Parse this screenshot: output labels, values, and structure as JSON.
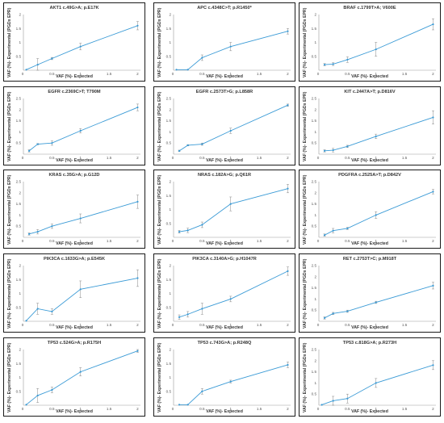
{
  "chart_data": [
    {
      "type": "line",
      "title": "AKT1 c.49G>A; p.E17K",
      "xlabel": "VAF (%)- Expected",
      "ylabel": "VAF (%)- Experimental (PGDx EPR)",
      "x": [
        0.05,
        0.25,
        0.5,
        1,
        2
      ],
      "y": [
        0.02,
        0.2,
        0.42,
        0.85,
        1.6
      ],
      "err": [
        0.0,
        0.22,
        0.04,
        0.12,
        0.15
      ],
      "xticks": [
        0.5,
        1,
        1.5,
        2
      ],
      "yticks": [
        0.5,
        1,
        1.5,
        2
      ],
      "xlim": [
        0,
        2.05
      ],
      "ylim": [
        0,
        2.0
      ]
    },
    {
      "type": "line",
      "title": "APC c.4348C>T; p.R1450*",
      "xlabel": "VAF (%)- Expected",
      "ylabel": "VAF (%)- Experimental (PGDx EPR)",
      "x": [
        0.05,
        0.25,
        0.5,
        1,
        2
      ],
      "y": [
        0.02,
        0.02,
        0.45,
        0.85,
        1.4
      ],
      "err": [
        0.0,
        0.0,
        0.1,
        0.15,
        0.1
      ],
      "xticks": [
        0.5,
        1,
        1.5,
        2
      ],
      "yticks": [
        0.5,
        1,
        1.5,
        2
      ],
      "xlim": [
        0,
        2.05
      ],
      "ylim": [
        0,
        2.0
      ]
    },
    {
      "type": "line",
      "title": "BRAF c.1799T>A; V600E",
      "xlabel": "VAF (%)- Expected",
      "ylabel": "VAF (%)- Experimental (PGDx EPR)",
      "x": [
        0.1,
        0.25,
        0.5,
        1,
        2
      ],
      "y": [
        0.2,
        0.22,
        0.38,
        0.75,
        1.65
      ],
      "err": [
        0.04,
        0.05,
        0.1,
        0.25,
        0.2
      ],
      "xticks": [
        0.5,
        1,
        1.5,
        2
      ],
      "yticks": [
        0.5,
        1,
        1.5,
        2
      ],
      "xlim": [
        0,
        2.05
      ],
      "ylim": [
        0,
        2.0
      ]
    },
    {
      "type": "line",
      "title": "EGFR c.2369C>T; T790M",
      "xlabel": "VAF (%)- Expected",
      "ylabel": "VAF (%)- Experimental (PGDx EPR)",
      "x": [
        0.1,
        0.25,
        0.5,
        1,
        2
      ],
      "y": [
        0.15,
        0.45,
        0.5,
        1.05,
        2.1
      ],
      "err": [
        0.05,
        0.03,
        0.1,
        0.1,
        0.15
      ],
      "xticks": [
        0.5,
        1,
        1.5,
        2
      ],
      "yticks": [
        0.5,
        1,
        1.5,
        2,
        2.5
      ],
      "xlim": [
        0,
        2.05
      ],
      "ylim": [
        0,
        2.5
      ]
    },
    {
      "type": "line",
      "title": "EGFR c.2573T>G; p.L858R",
      "xlabel": "VAF (%)- Expected",
      "ylabel": "VAF (%)- Experimental (PGDx EPR)",
      "x": [
        0.1,
        0.25,
        0.5,
        1,
        2
      ],
      "y": [
        0.15,
        0.4,
        0.45,
        1.05,
        2.2
      ],
      "err": [
        0.03,
        0.03,
        0.05,
        0.12,
        0.05
      ],
      "xticks": [
        0.5,
        1,
        1.5,
        2
      ],
      "yticks": [
        0.5,
        1,
        1.5,
        2,
        2.5
      ],
      "xlim": [
        0,
        2.05
      ],
      "ylim": [
        0,
        2.5
      ]
    },
    {
      "type": "line",
      "title": "KIT c.2447A>T; p.D816V",
      "xlabel": "VAF (%)- Expected",
      "ylabel": "VAF (%)- Experimental (PGDx EPR)",
      "x": [
        0.1,
        0.25,
        0.5,
        1,
        2
      ],
      "y": [
        0.15,
        0.18,
        0.35,
        0.8,
        1.65
      ],
      "err": [
        0.05,
        0.08,
        0.05,
        0.1,
        0.3
      ],
      "xticks": [
        0.5,
        1,
        1.5,
        2
      ],
      "yticks": [
        0.5,
        1,
        1.5,
        2,
        2.5
      ],
      "xlim": [
        0,
        2.05
      ],
      "ylim": [
        0,
        2.5
      ]
    },
    {
      "type": "line",
      "title": "KRAS c.35G>A; p.G12D",
      "xlabel": "VAF (%)- Expected",
      "ylabel": "VAF (%)- Experimental (PGDx EPR)",
      "x": [
        0.1,
        0.25,
        0.5,
        1,
        2
      ],
      "y": [
        0.15,
        0.25,
        0.5,
        0.85,
        1.6
      ],
      "err": [
        0.05,
        0.1,
        0.1,
        0.2,
        0.3
      ],
      "xticks": [
        0.5,
        1,
        1.5,
        2
      ],
      "yticks": [
        0.5,
        1,
        1.5,
        2,
        2.5
      ],
      "xlim": [
        0,
        2.05
      ],
      "ylim": [
        0,
        2.5
      ]
    },
    {
      "type": "line",
      "title": "NRAS c.182A>G; p.Q61R",
      "xlabel": "VAF (%)- Expected",
      "ylabel": "VAF (%)- Experimental (PGDx EPR)",
      "x": [
        0.1,
        0.25,
        0.5,
        1,
        2
      ],
      "y": [
        0.2,
        0.25,
        0.45,
        1.2,
        1.75
      ],
      "err": [
        0.05,
        0.08,
        0.1,
        0.25,
        0.15
      ],
      "xticks": [
        0.5,
        1,
        1.5,
        2
      ],
      "yticks": [
        0.5,
        1,
        1.5,
        2
      ],
      "xlim": [
        0,
        2.05
      ],
      "ylim": [
        0,
        2.0
      ]
    },
    {
      "type": "line",
      "title": "PDGFRA c.2525A>T; p.D842V",
      "xlabel": "VAF (%)- Expected",
      "ylabel": "VAF (%)- Experimental (PGDx EPR)",
      "x": [
        0.1,
        0.25,
        0.5,
        1,
        2
      ],
      "y": [
        0.1,
        0.3,
        0.4,
        1.0,
        2.05
      ],
      "err": [
        0.05,
        0.1,
        0.05,
        0.15,
        0.1
      ],
      "xticks": [
        0.5,
        1,
        1.5,
        2
      ],
      "yticks": [
        0.5,
        1,
        1.5,
        2,
        2.5
      ],
      "xlim": [
        0,
        2.05
      ],
      "ylim": [
        0,
        2.5
      ]
    },
    {
      "type": "line",
      "title": "PIK3CA c.1633G>A; p.E545K",
      "xlabel": "VAF (%)- Expected",
      "ylabel": "VAF (%)- Experimental (PGDx EPR)",
      "x": [
        0.05,
        0.25,
        0.5,
        1,
        2
      ],
      "y": [
        0.02,
        0.45,
        0.35,
        1.15,
        1.55
      ],
      "err": [
        0.0,
        0.2,
        0.1,
        0.3,
        0.3
      ],
      "xticks": [
        0.5,
        1,
        1.5,
        2
      ],
      "yticks": [
        0.5,
        1,
        1.5,
        2
      ],
      "xlim": [
        0,
        2.05
      ],
      "ylim": [
        0,
        2.0
      ]
    },
    {
      "type": "line",
      "title": "PIK3CA c.3140A>G; p.H1047R",
      "xlabel": "VAF (%)- Expected",
      "ylabel": "VAF (%)- Experimental (PGDx EPR)",
      "x": [
        0.1,
        0.25,
        0.5,
        1,
        2
      ],
      "y": [
        0.15,
        0.25,
        0.45,
        0.8,
        1.8
      ],
      "err": [
        0.08,
        0.1,
        0.2,
        0.1,
        0.15
      ],
      "xticks": [
        0.5,
        1,
        1.5,
        2
      ],
      "yticks": [
        0.5,
        1,
        1.5,
        2
      ],
      "xlim": [
        0,
        2.05
      ],
      "ylim": [
        0,
        2.0
      ]
    },
    {
      "type": "line",
      "title": "RET c.2753T>C; p.M918T",
      "xlabel": "VAF (%)- Expected",
      "ylabel": "VAF (%)- Experimental (PGDx EPR)",
      "x": [
        0.1,
        0.25,
        0.5,
        1,
        2
      ],
      "y": [
        0.15,
        0.35,
        0.45,
        0.85,
        1.6
      ],
      "err": [
        0.05,
        0.05,
        0.05,
        0.05,
        0.15
      ],
      "xticks": [
        0.5,
        1,
        1.5,
        2
      ],
      "yticks": [
        0.5,
        1,
        1.5,
        2,
        2.5
      ],
      "xlim": [
        0,
        2.05
      ],
      "ylim": [
        0,
        2.5
      ]
    },
    {
      "type": "line",
      "title": "TP53 c.524G>A; p.R175H",
      "xlabel": "VAF (%)- Expected",
      "ylabel": "VAF (%)- Experimental (PGDx EPR)",
      "x": [
        0.05,
        0.25,
        0.5,
        1,
        2
      ],
      "y": [
        0.02,
        0.35,
        0.55,
        1.2,
        1.95
      ],
      "err": [
        0.0,
        0.25,
        0.1,
        0.15,
        0.05
      ],
      "xticks": [
        0.5,
        1,
        1.5,
        2
      ],
      "yticks": [
        0.5,
        1,
        1.5,
        2
      ],
      "xlim": [
        0,
        2.05
      ],
      "ylim": [
        0,
        2.0
      ]
    },
    {
      "type": "line",
      "title": "TP53 c.743G>A; p.R248Q",
      "xlabel": "VAF (%)- Expected",
      "ylabel": "VAF (%)- Experimental (PGDx EPR)",
      "x": [
        0.1,
        0.25,
        0.5,
        1,
        2
      ],
      "y": [
        0.02,
        0.02,
        0.5,
        0.85,
        1.45
      ],
      "err": [
        0.0,
        0.0,
        0.1,
        0.05,
        0.1
      ],
      "xticks": [
        0.5,
        1,
        1.5,
        2
      ],
      "yticks": [
        0.5,
        1,
        1.5,
        2
      ],
      "xlim": [
        0,
        2.05
      ],
      "ylim": [
        0,
        2.0
      ]
    },
    {
      "type": "line",
      "title": "TP53 c.818G>A; p.R273H",
      "xlabel": "VAF (%)- Expected",
      "ylabel": "VAF (%)- Experimental (PGDx EPR)",
      "x": [
        0.05,
        0.25,
        0.5,
        1,
        2
      ],
      "y": [
        0.02,
        0.2,
        0.3,
        1.0,
        1.8
      ],
      "err": [
        0.0,
        0.2,
        0.2,
        0.2,
        0.2
      ],
      "xticks": [
        0.5,
        1,
        1.5,
        2
      ],
      "yticks": [
        0.5,
        1,
        1.5,
        2,
        2.5
      ],
      "xlim": [
        0,
        2.05
      ],
      "ylim": [
        0,
        2.5
      ]
    }
  ],
  "colors": {
    "line": "#3b9bd6",
    "error": "#888888",
    "axis": "#9a9a9a",
    "border": "#1a1a1a"
  }
}
